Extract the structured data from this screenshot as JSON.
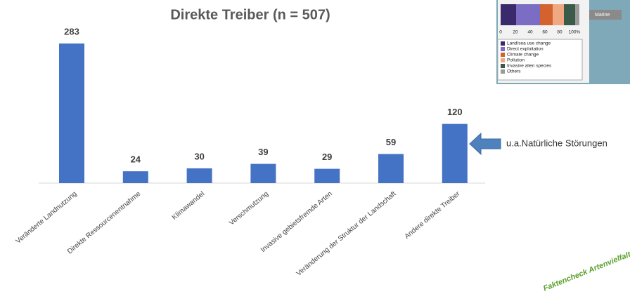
{
  "chart_data": {
    "type": "bar",
    "title": "Direkte Treiber (n = 507)",
    "categories": [
      "Veränderte Landnutzung",
      "Direkte Ressourcenentnahme",
      "Klimawandel",
      "Verschmutzung",
      "Invasive gebietsfremde Arten",
      "Veränderung der Struktur der Landschaft",
      "Andere direkte Treiber"
    ],
    "values": [
      283,
      24,
      30,
      39,
      29,
      59,
      120
    ],
    "color": "#4472c4",
    "annotation": "u.a.Natürliche Störungen"
  },
  "inset": {
    "label": "Marine",
    "axis_labels": [
      "0",
      "20",
      "40",
      "60",
      "80",
      "100%"
    ],
    "legend": [
      {
        "name": "Land/sea use change",
        "color": "#3b2a6b"
      },
      {
        "name": "Direct exploitation",
        "color": "#7b6cc4"
      },
      {
        "name": "Climate change",
        "color": "#d4622e"
      },
      {
        "name": "Pollution",
        "color": "#f0a882"
      },
      {
        "name": "Invasive alien species",
        "color": "#3a5a4a"
      },
      {
        "name": "Others",
        "color": "#9a9a9a"
      }
    ]
  },
  "logo": {
    "text": "Faktencheck Artenvielfalt"
  }
}
